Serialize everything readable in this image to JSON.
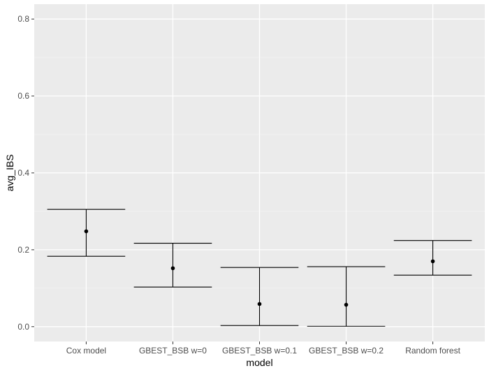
{
  "chart_data": {
    "type": "errorbar",
    "xlabel": "model",
    "ylabel": "avg_IBS",
    "categories": [
      "Cox model",
      "GBEST_BSB w=0",
      "GBEST_BSB w=0.1",
      "GBEST_BSB w=0.2",
      "Random forest"
    ],
    "points": [
      {
        "category": "Cox model",
        "value": 0.248,
        "lower": 0.183,
        "upper": 0.305
      },
      {
        "category": "GBEST_BSB w=0",
        "value": 0.152,
        "lower": 0.103,
        "upper": 0.217
      },
      {
        "category": "GBEST_BSB w=0.1",
        "value": 0.059,
        "lower": 0.003,
        "upper": 0.154
      },
      {
        "category": "GBEST_BSB w=0.2",
        "value": 0.057,
        "lower": 0.001,
        "upper": 0.156
      },
      {
        "category": "Random forest",
        "value": 0.17,
        "lower": 0.134,
        "upper": 0.224
      }
    ],
    "ylim": [
      -0.0386,
      0.8386
    ],
    "yticks": [
      0.0,
      0.2,
      0.4,
      0.6,
      0.8
    ],
    "ytick_labels": [
      "0.0",
      "0.2",
      "0.4",
      "0.6",
      "0.8"
    ],
    "grid": true,
    "colors": {
      "panel_bg": "#ebebeb",
      "grid_major": "#ffffff",
      "grid_minor": "#f3f3f3",
      "marks": "#000000",
      "tick_text": "#4d4d4d"
    }
  }
}
